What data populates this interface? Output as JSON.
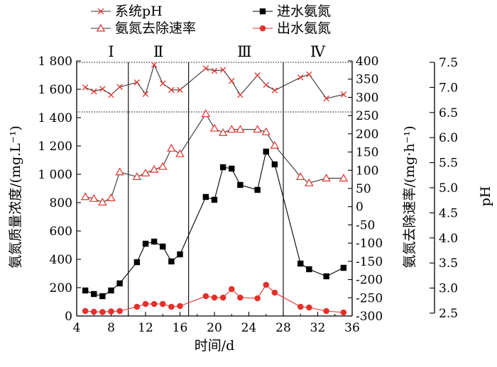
{
  "chart_data": {
    "type": "line",
    "x": {
      "label": "时间/d",
      "range": [
        4,
        36
      ],
      "ticks": [
        4,
        8,
        12,
        16,
        20,
        24,
        28,
        32,
        36
      ],
      "tick_labels": [
        "4",
        "8",
        "12",
        "16",
        "20",
        "24",
        "28",
        "32",
        "36"
      ]
    },
    "y_left": {
      "label": "氨氮质量浓度/(mg.L⁻¹)",
      "range": [
        0,
        1800
      ],
      "ticks": [
        0,
        200,
        400,
        600,
        800,
        1000,
        1200,
        1400,
        1600,
        1800
      ],
      "tick_labels": [
        "0",
        "200",
        "400",
        "600",
        "800",
        "1 000",
        "1 200",
        "1 400",
        "1 600",
        "1 800"
      ]
    },
    "y_right": {
      "label": "氨氮去除速率/(mg·h⁻¹)",
      "range": [
        -300,
        400
      ],
      "ticks": [
        -300,
        -250,
        -200,
        -150,
        -100,
        -50,
        0,
        50,
        100,
        150,
        200,
        250,
        300,
        350,
        400
      ],
      "tick_labels": [
        "-300",
        "-250",
        "-200",
        "-150",
        "-100",
        "-50",
        "0",
        "50",
        "100",
        "150",
        "200",
        "250",
        "300",
        "350",
        "400"
      ]
    },
    "y_ph": {
      "label": "pH",
      "range": [
        2.5,
        7.5
      ],
      "ticks": [
        2.5,
        3.0,
        3.5,
        4.0,
        4.5,
        5.0,
        5.5,
        6.0,
        6.5,
        7.0,
        7.5
      ],
      "tick_labels": [
        "2.5",
        "3.0",
        "3.5",
        "4.0",
        "4.5",
        "5.0",
        "5.5",
        "6.0",
        "6.5",
        "7.0",
        "7.5"
      ]
    },
    "stages": {
      "labels": [
        "Ⅰ",
        "Ⅱ",
        "Ⅲ",
        "Ⅳ"
      ],
      "label_x": [
        8,
        13.5,
        23.5,
        32
      ],
      "boundaries": [
        10,
        17,
        28
      ]
    },
    "reference_lines_left": [
      1440,
      1790
    ],
    "series": [
      {
        "name": "系统pH",
        "axis": "ph",
        "color": "#e4312b",
        "marker": "x",
        "x": [
          5,
          6,
          7,
          8,
          9,
          11,
          12,
          13,
          14,
          15,
          16,
          19,
          20,
          21,
          22,
          23,
          25,
          26,
          27,
          30,
          31,
          33,
          35
        ],
        "values": [
          7.0,
          6.92,
          6.97,
          6.85,
          7.01,
          7.1,
          6.87,
          7.45,
          7.08,
          6.95,
          6.95,
          7.38,
          7.33,
          7.35,
          7.13,
          6.85,
          7.24,
          7.05,
          6.94,
          7.2,
          7.26,
          6.78,
          6.86
        ]
      },
      {
        "name": "氨氮去除速率",
        "axis": "right",
        "color": "#e4312b",
        "marker": "triangle",
        "x": [
          5,
          6,
          7,
          8,
          9,
          11,
          12,
          13,
          14,
          15,
          16,
          19,
          20,
          21,
          22,
          23,
          25,
          26,
          27,
          30,
          31,
          33,
          35
        ],
        "values": [
          27,
          22,
          12,
          24,
          95,
          82,
          92,
          102,
          110,
          160,
          145,
          255,
          215,
          203,
          212,
          212,
          212,
          205,
          168,
          82,
          65,
          78,
          78
        ]
      },
      {
        "name": "进水氨氮",
        "axis": "left",
        "color": "#000000",
        "marker": "square",
        "x": [
          5,
          6,
          7,
          8,
          9,
          11,
          12,
          13,
          14,
          15,
          16,
          19,
          20,
          21,
          22,
          23,
          25,
          26,
          27,
          30,
          31,
          33,
          35
        ],
        "values": [
          180,
          155,
          140,
          180,
          230,
          380,
          510,
          525,
          490,
          385,
          435,
          840,
          820,
          1050,
          1040,
          925,
          890,
          1160,
          1070,
          370,
          330,
          280,
          340
        ]
      },
      {
        "name": "出水氨氮",
        "axis": "left",
        "color": "#e4312b",
        "marker": "circle",
        "x": [
          5,
          6,
          7,
          8,
          9,
          11,
          12,
          13,
          14,
          15,
          16,
          19,
          20,
          21,
          22,
          23,
          25,
          26,
          27,
          30,
          31,
          33,
          35
        ],
        "values": [
          35,
          30,
          28,
          32,
          35,
          65,
          85,
          85,
          85,
          65,
          70,
          140,
          130,
          130,
          190,
          130,
          125,
          220,
          165,
          65,
          60,
          35,
          25
        ]
      }
    ]
  }
}
